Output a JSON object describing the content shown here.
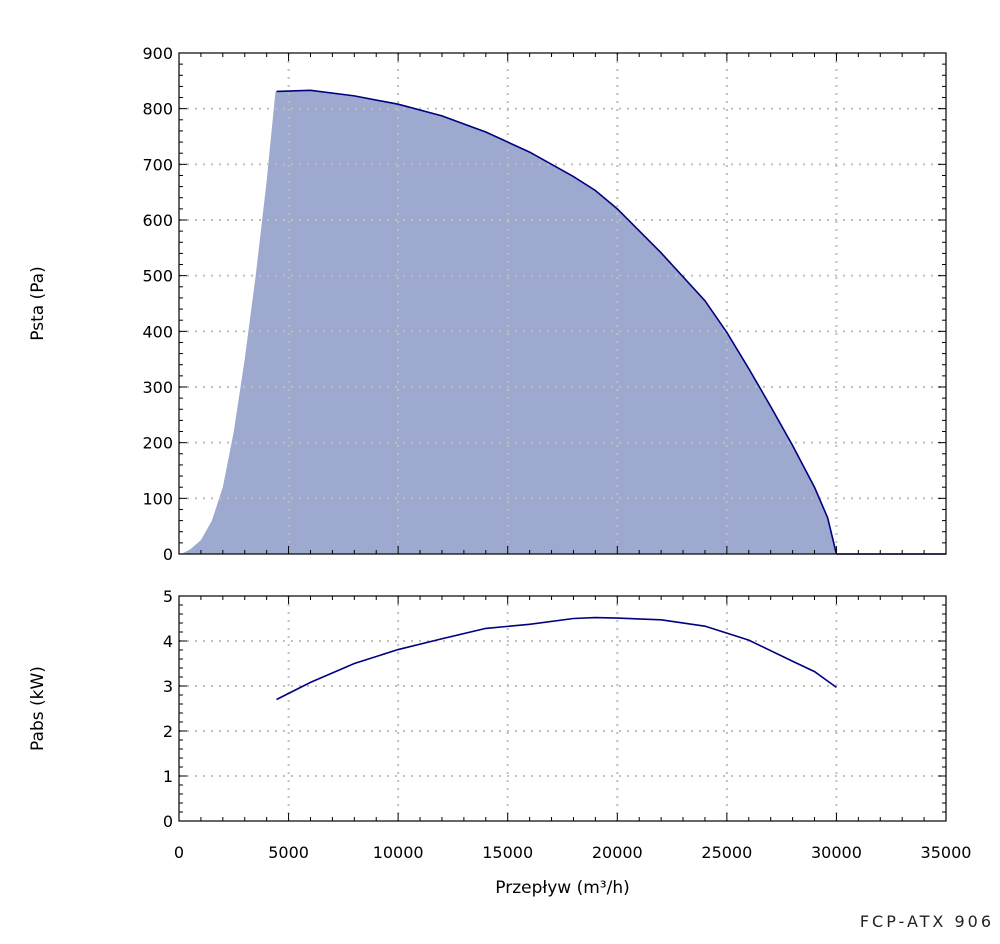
{
  "model_label": "FCP-ATX 906",
  "colors": {
    "area_fill": "#9EA9CF",
    "curve": "#000080",
    "grid": "#bfbfbf",
    "axis": "#000000"
  },
  "chart_data": [
    {
      "type": "area",
      "ylabel": "Psta (Pa)",
      "xlabel": "",
      "xlim": [
        0,
        35000
      ],
      "ylim": [
        0,
        900
      ],
      "x_ticks": [
        0,
        5000,
        10000,
        15000,
        20000,
        25000,
        30000,
        35000
      ],
      "y_ticks": [
        0,
        100,
        200,
        300,
        400,
        500,
        600,
        700,
        800,
        900
      ],
      "x_tick_labels": [
        "",
        "",
        "",
        "",
        "",
        "",
        "",
        ""
      ],
      "y_tick_labels": [
        "0",
        "100",
        "200",
        "300",
        "400",
        "500",
        "600",
        "700",
        "800",
        "900"
      ],
      "grid": true,
      "series": [
        {
          "x": [
            0,
            200,
            500,
            1000,
            1500,
            2000,
            2500,
            3000,
            3500,
            4000,
            4400,
            4450,
            6000,
            8000,
            10000,
            12000,
            14000,
            16000,
            18000,
            19000,
            20000,
            22000,
            24000,
            25000,
            26000,
            27000,
            28000,
            29000,
            29600,
            30000,
            35000
          ],
          "y": [
            0,
            2,
            8,
            25,
            60,
            120,
            220,
            350,
            500,
            670,
            830,
            831,
            833,
            823,
            808,
            787,
            758,
            722,
            678,
            653,
            620,
            541,
            455,
            398,
            333,
            265,
            195,
            120,
            65,
            0,
            0
          ]
        }
      ]
    },
    {
      "type": "line",
      "ylabel": "Pabs (kW)",
      "xlabel": "Przepływ (m³/h)",
      "xlim": [
        0,
        35000
      ],
      "ylim": [
        0,
        5
      ],
      "x_ticks": [
        0,
        5000,
        10000,
        15000,
        20000,
        25000,
        30000,
        35000
      ],
      "y_ticks": [
        0,
        1,
        2,
        3,
        4,
        5
      ],
      "x_tick_labels": [
        "0",
        "5000",
        "10000",
        "15000",
        "20000",
        "25000",
        "30000",
        "35000"
      ],
      "y_tick_labels": [
        "0",
        "1",
        "2",
        "3",
        "4",
        "5"
      ],
      "grid": true,
      "series": [
        {
          "x": [
            4450,
            6000,
            8000,
            10000,
            12000,
            14000,
            16000,
            18000,
            19000,
            20000,
            22000,
            24000,
            26000,
            28000,
            29000,
            30000
          ],
          "y": [
            2.7,
            3.08,
            3.5,
            3.81,
            4.05,
            4.28,
            4.37,
            4.5,
            4.52,
            4.51,
            4.47,
            4.33,
            4.02,
            3.55,
            3.32,
            2.97
          ]
        }
      ]
    }
  ]
}
